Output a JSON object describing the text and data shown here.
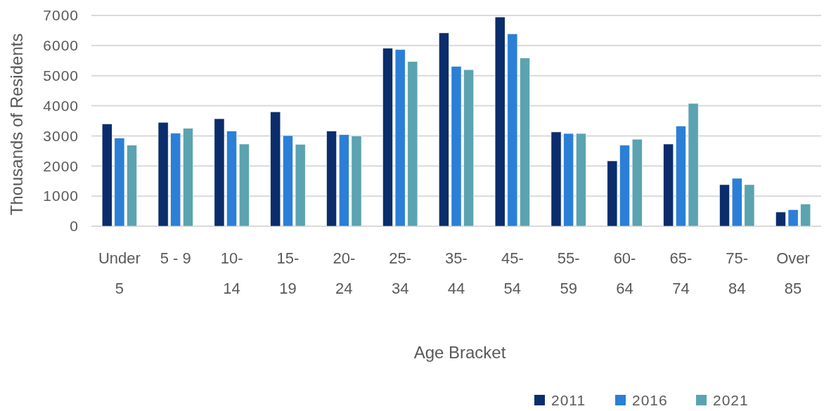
{
  "chart_data": {
    "type": "bar",
    "xlabel": "Age Bracket",
    "ylabel": "Thousands of Residents",
    "categories": [
      "Under 5",
      "5 - 9",
      "10-14",
      "15-19",
      "20-24",
      "25-34",
      "35-44",
      "45-54",
      "55-59",
      "60-64",
      "65-74",
      "75-84",
      "Over 85"
    ],
    "series": [
      {
        "name": "2011",
        "color": "#0b2d6b",
        "values": [
          3400,
          3450,
          3570,
          3800,
          3160,
          5910,
          6420,
          6950,
          3130,
          2170,
          2730,
          1380,
          470
        ]
      },
      {
        "name": "2016",
        "color": "#2b7fd6",
        "values": [
          2930,
          3090,
          3160,
          3010,
          3040,
          5870,
          5310,
          6390,
          3080,
          2690,
          3330,
          1590,
          550
        ]
      },
      {
        "name": "2021",
        "color": "#5ba3b0",
        "values": [
          2690,
          3250,
          2730,
          2720,
          3000,
          5470,
          5200,
          5590,
          3080,
          2890,
          4080,
          1380,
          740
        ]
      }
    ],
    "ylim": [
      0,
      7000
    ],
    "yticks": [
      0,
      1000,
      2000,
      3000,
      4000,
      5000,
      6000,
      7000
    ],
    "grid": "y",
    "legend": "bottom right"
  }
}
